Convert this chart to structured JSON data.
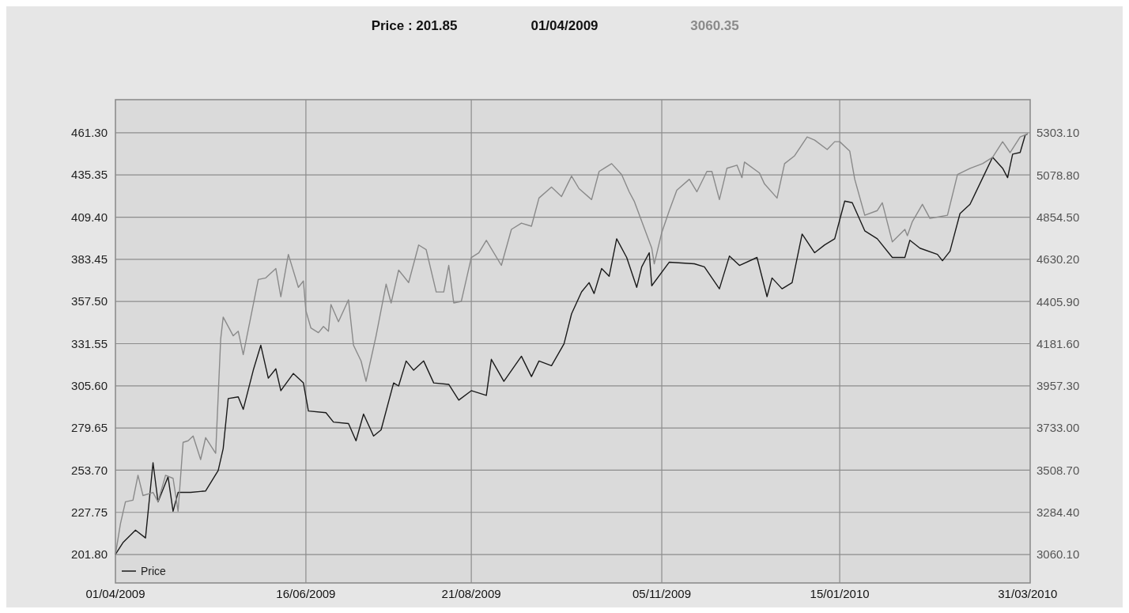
{
  "chart_data": {
    "type": "line",
    "annotations": [
      "Price :  201.85",
      "01/04/2009",
      "3060.35"
    ],
    "xlim": [
      "2009-04-01",
      "2010-04-01"
    ],
    "xticks": [
      {
        "value": "2009-04-01",
        "label": "01/04/2009"
      },
      {
        "value": "2009-06-16",
        "label": "16/06/2009"
      },
      {
        "value": "2009-08-21",
        "label": "21/08/2009"
      },
      {
        "value": "2009-11-05",
        "label": "05/11/2009"
      },
      {
        "value": "2010-01-15",
        "label": "15/01/2010"
      },
      {
        "value": "2010-03-31",
        "label": "31/03/2010"
      }
    ],
    "ylim": [
      184.3,
      481.7
    ],
    "yticks": [
      {
        "value": 201.8,
        "label": "201.80"
      },
      {
        "value": 227.75,
        "label": "227.75"
      },
      {
        "value": 253.7,
        "label": "253.70"
      },
      {
        "value": 279.65,
        "label": "279.65"
      },
      {
        "value": 305.6,
        "label": "305.60"
      },
      {
        "value": 331.55,
        "label": "331.55"
      },
      {
        "value": 357.5,
        "label": "357.50"
      },
      {
        "value": 383.45,
        "label": "383.45"
      },
      {
        "value": 409.4,
        "label": "409.40"
      },
      {
        "value": 435.35,
        "label": "435.35"
      },
      {
        "value": 461.3,
        "label": "461.30"
      }
    ],
    "y2lim": [
      2909,
      5480
    ],
    "y2ticks": [
      {
        "value": 3060.1,
        "label": "3060.10"
      },
      {
        "value": 3284.4,
        "label": "3284.40"
      },
      {
        "value": 3508.7,
        "label": "3508.70"
      },
      {
        "value": 3733,
        "label": "3733.00"
      },
      {
        "value": 3957.3,
        "label": "3957.30"
      },
      {
        "value": 4181.6,
        "label": "4181.60"
      },
      {
        "value": 4405.9,
        "label": "4405.90"
      },
      {
        "value": 4630.2,
        "label": "4630.20"
      },
      {
        "value": 4854.5,
        "label": "4854.50"
      },
      {
        "value": 5078.8,
        "label": "5078.80"
      },
      {
        "value": 5303.1,
        "label": "5303.10"
      }
    ],
    "grid": true,
    "legend": "bottom left",
    "line_style": "solid",
    "series": [
      {
        "name": "Price",
        "color": "#1a1a1a",
        "x": [
          "2009-04-01",
          "2009-04-04",
          "2009-04-09",
          "2009-04-13",
          "2009-04-16",
          "2009-04-18",
          "2009-04-22",
          "2009-04-24",
          "2009-04-26",
          "2009-05-01",
          "2009-05-07",
          "2009-05-12",
          "2009-05-14",
          "2009-05-16",
          "2009-05-20",
          "2009-05-22",
          "2009-05-26",
          "2009-05-29",
          "2009-06-01",
          "2009-06-04",
          "2009-06-06",
          "2009-06-11",
          "2009-06-15",
          "2009-06-17",
          "2009-06-24",
          "2009-06-27",
          "2009-07-03",
          "2009-07-06",
          "2009-07-09",
          "2009-07-13",
          "2009-07-16",
          "2009-07-21",
          "2009-07-23",
          "2009-07-26",
          "2009-07-29",
          "2009-08-02",
          "2009-08-06",
          "2009-08-12",
          "2009-08-16",
          "2009-08-21",
          "2009-08-27",
          "2009-08-29",
          "2009-09-03",
          "2009-09-10",
          "2009-09-14",
          "2009-09-17",
          "2009-09-22",
          "2009-09-27",
          "2009-09-30",
          "2009-10-04",
          "2009-10-07",
          "2009-10-09",
          "2009-10-12",
          "2009-10-15",
          "2009-10-18",
          "2009-10-22",
          "2009-10-26",
          "2009-10-28",
          "2009-10-31",
          "2009-11-01",
          "2009-11-08",
          "2009-11-18",
          "2009-11-22",
          "2009-11-28",
          "2009-12-02",
          "2009-12-06",
          "2009-12-13",
          "2009-12-17",
          "2009-12-19",
          "2009-12-23",
          "2009-12-27",
          "2009-12-31",
          "2010-01-05",
          "2010-01-09",
          "2010-01-13",
          "2010-01-15",
          "2010-01-17",
          "2010-01-20",
          "2010-01-25",
          "2010-01-30",
          "2010-02-05",
          "2010-02-10",
          "2010-02-12",
          "2010-02-16",
          "2010-02-23",
          "2010-02-25",
          "2010-02-28",
          "2010-03-04",
          "2010-03-08",
          "2010-03-14",
          "2010-03-17",
          "2010-03-21",
          "2010-03-23",
          "2010-03-25",
          "2010-03-28",
          "2010-03-30",
          "2010-03-31"
        ],
        "values": [
          201.85,
          209.1,
          216.8,
          212,
          258.3,
          234.2,
          249.6,
          228.4,
          240,
          240,
          240.9,
          253.5,
          267,
          297.8,
          298.8,
          291.1,
          315.2,
          330.6,
          310.3,
          316.1,
          302.6,
          313.2,
          307.4,
          290.1,
          289.1,
          283.3,
          282.4,
          271.8,
          288.2,
          274.7,
          278.5,
          307.4,
          305.5,
          320.9,
          315.2,
          320.9,
          307.4,
          306.5,
          296.8,
          302.6,
          299.7,
          321.9,
          308.4,
          323.8,
          311.3,
          320.9,
          318,
          331.5,
          349.9,
          363.4,
          369.1,
          362.4,
          377.8,
          373,
          396.1,
          384.6,
          366.2,
          378.8,
          387.5,
          367.2,
          381.7,
          380.7,
          378.8,
          365.3,
          385.5,
          379.7,
          384.6,
          360.5,
          372,
          365.3,
          369.1,
          399,
          387.5,
          392.3,
          396.1,
          407.7,
          419.3,
          418.3,
          401,
          396.1,
          384.6,
          384.6,
          395.2,
          390.3,
          386.5,
          382.6,
          388.4,
          411.6,
          417.3,
          436.6,
          446.3,
          439.5,
          433.7,
          448.2,
          449.2,
          459.8,
          460.7
        ]
      },
      {
        "color": "#8a8a8a",
        "axis": "y2",
        "x": [
          "2009-04-01",
          "2009-04-03",
          "2009-04-05",
          "2009-04-08",
          "2009-04-10",
          "2009-04-12",
          "2009-04-16",
          "2009-04-18",
          "2009-04-21",
          "2009-04-24",
          "2009-04-26",
          "2009-04-28",
          "2009-04-30",
          "2009-05-02",
          "2009-05-05",
          "2009-05-07",
          "2009-05-11",
          "2009-05-13",
          "2009-05-14",
          "2009-05-18",
          "2009-05-20",
          "2009-05-22",
          "2009-05-28",
          "2009-05-31",
          "2009-06-04",
          "2009-06-06",
          "2009-06-09",
          "2009-06-13",
          "2009-06-15",
          "2009-06-16",
          "2009-06-18",
          "2009-06-21",
          "2009-06-23",
          "2009-06-25",
          "2009-06-26",
          "2009-06-29",
          "2009-07-03",
          "2009-07-05",
          "2009-07-08",
          "2009-07-10",
          "2009-07-14",
          "2009-07-18",
          "2009-07-20",
          "2009-07-23",
          "2009-07-27",
          "2009-07-31",
          "2009-08-03",
          "2009-08-07",
          "2009-08-10",
          "2009-08-12",
          "2009-08-14",
          "2009-08-17",
          "2009-08-21",
          "2009-08-24",
          "2009-08-27",
          "2009-09-02",
          "2009-09-06",
          "2009-09-10",
          "2009-09-14",
          "2009-09-17",
          "2009-09-22",
          "2009-09-26",
          "2009-09-30",
          "2009-10-03",
          "2009-10-08",
          "2009-10-11",
          "2009-10-16",
          "2009-10-20",
          "2009-10-23",
          "2009-10-25",
          "2009-11-01",
          "2009-11-02",
          "2009-11-05",
          "2009-11-08",
          "2009-11-11",
          "2009-11-16",
          "2009-11-19",
          "2009-11-23",
          "2009-11-25",
          "2009-11-28",
          "2009-12-01",
          "2009-12-05",
          "2009-12-07",
          "2009-12-08",
          "2009-12-14",
          "2009-12-16",
          "2009-12-21",
          "2009-12-24",
          "2009-12-28",
          "2010-01-02",
          "2010-01-05",
          "2010-01-10",
          "2010-01-13",
          "2010-01-15",
          "2010-01-19",
          "2010-01-21",
          "2010-01-25",
          "2010-01-30",
          "2010-02-01",
          "2010-02-05",
          "2010-02-10",
          "2010-02-11",
          "2010-02-13",
          "2010-02-17",
          "2010-02-20",
          "2010-02-27",
          "2010-03-03",
          "2010-03-08",
          "2010-03-13",
          "2010-03-17",
          "2010-03-21",
          "2010-03-24",
          "2010-03-28",
          "2010-03-31"
        ],
        "values": [
          3060.35,
          3223.9,
          3340.6,
          3349,
          3482,
          3373.9,
          3390.5,
          3340.6,
          3482,
          3465.5,
          3290.6,
          3657.1,
          3665.4,
          3690.4,
          3565.5,
          3682.1,
          3598.8,
          4206.9,
          4323.5,
          4223.5,
          4248.5,
          4123.6,
          4523.4,
          4531.8,
          4581.7,
          4431.8,
          4656.7,
          4481.8,
          4515.1,
          4356.8,
          4265.2,
          4240.2,
          4273.5,
          4248.5,
          4390.1,
          4298.5,
          4415.1,
          4173.6,
          4090.3,
          3982,
          4223.5,
          4498.4,
          4398.4,
          4573.4,
          4506.7,
          4706.7,
          4681.7,
          4456.8,
          4456.8,
          4598.4,
          4398.5,
          4406.8,
          4640,
          4665,
          4731.7,
          4598.4,
          4790,
          4823.3,
          4806.6,
          4956.6,
          5014.9,
          4964.9,
          5073.2,
          5006.6,
          4948.2,
          5098.2,
          5139.8,
          5081.5,
          4989.9,
          4939.9,
          4690,
          4606.7,
          4773.3,
          4889.9,
          4998.2,
          5056.5,
          4989.9,
          5098.2,
          5098.2,
          4948.2,
          5114.8,
          5131.5,
          5064.9,
          5148.2,
          5089.9,
          5031.5,
          4956.6,
          5139.8,
          5181.5,
          5281.4,
          5264.8,
          5214.8,
          5256.5,
          5256.5,
          5206.5,
          5056.5,
          4864.9,
          4889.9,
          4931.6,
          4723.3,
          4789.9,
          4756.6,
          4831.6,
          4923.2,
          4848.3,
          4864.9,
          5081.5,
          5114.8,
          5139.8,
          5173.2,
          5256.5,
          5198.1,
          5281.4,
          5298.1
        ]
      }
    ]
  }
}
